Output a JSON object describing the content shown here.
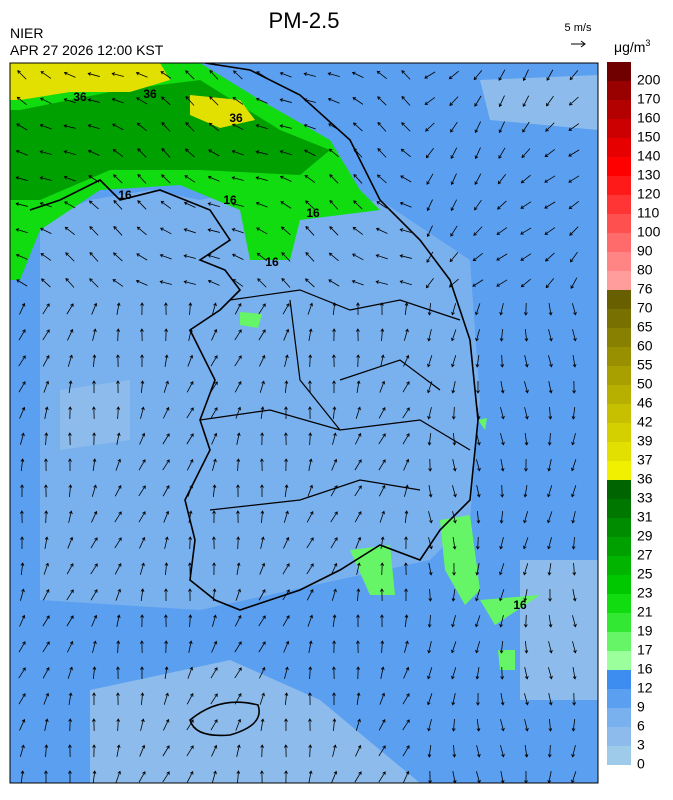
{
  "header": {
    "title": "PM-2.5",
    "agency": "NIER",
    "datetime": "APR 27 2026 12:00 KST",
    "wind_scale": "5 m/s"
  },
  "legend": {
    "unit": {
      "base": "μg/m",
      "sup": "3"
    },
    "items": [
      {
        "label": "0",
        "color": "#9ecbea"
      },
      {
        "label": "3",
        "color": "#8dbcec"
      },
      {
        "label": "6",
        "color": "#79b0ee"
      },
      {
        "label": "9",
        "color": "#5b9ff0"
      },
      {
        "label": "12",
        "color": "#3d8cf0"
      },
      {
        "label": "16",
        "color": "#9bff9b"
      },
      {
        "label": "17",
        "color": "#66f566"
      },
      {
        "label": "19",
        "color": "#33e833"
      },
      {
        "label": "21",
        "color": "#10dc10"
      },
      {
        "label": "23",
        "color": "#00c800"
      },
      {
        "label": "25",
        "color": "#00b400"
      },
      {
        "label": "27",
        "color": "#00a000"
      },
      {
        "label": "29",
        "color": "#008c00"
      },
      {
        "label": "31",
        "color": "#007800"
      },
      {
        "label": "33",
        "color": "#006400"
      },
      {
        "label": "36",
        "color": "#f0f000"
      },
      {
        "label": "37",
        "color": "#e2e000"
      },
      {
        "label": "39",
        "color": "#d4d000"
      },
      {
        "label": "42",
        "color": "#c6c000"
      },
      {
        "label": "46",
        "color": "#b8b000"
      },
      {
        "label": "50",
        "color": "#a8a000"
      },
      {
        "label": "55",
        "color": "#989000"
      },
      {
        "label": "60",
        "color": "#888000"
      },
      {
        "label": "65",
        "color": "#787000"
      },
      {
        "label": "70",
        "color": "#686000"
      },
      {
        "label": "76",
        "color": "#ff9c9c"
      },
      {
        "label": "80",
        "color": "#ff8585"
      },
      {
        "label": "90",
        "color": "#ff6b6b"
      },
      {
        "label": "100",
        "color": "#ff5050"
      },
      {
        "label": "110",
        "color": "#ff3535"
      },
      {
        "label": "120",
        "color": "#ff1a1a"
      },
      {
        "label": "130",
        "color": "#ff0000"
      },
      {
        "label": "140",
        "color": "#e60000"
      },
      {
        "label": "150",
        "color": "#cc0000"
      },
      {
        "label": "160",
        "color": "#b30000"
      },
      {
        "label": "170",
        "color": "#990000"
      },
      {
        "label": "200",
        "color": "#700000"
      }
    ]
  },
  "contour_labels": [
    "36",
    "36",
    "36",
    "16",
    "16",
    "16",
    "16",
    "16"
  ]
}
